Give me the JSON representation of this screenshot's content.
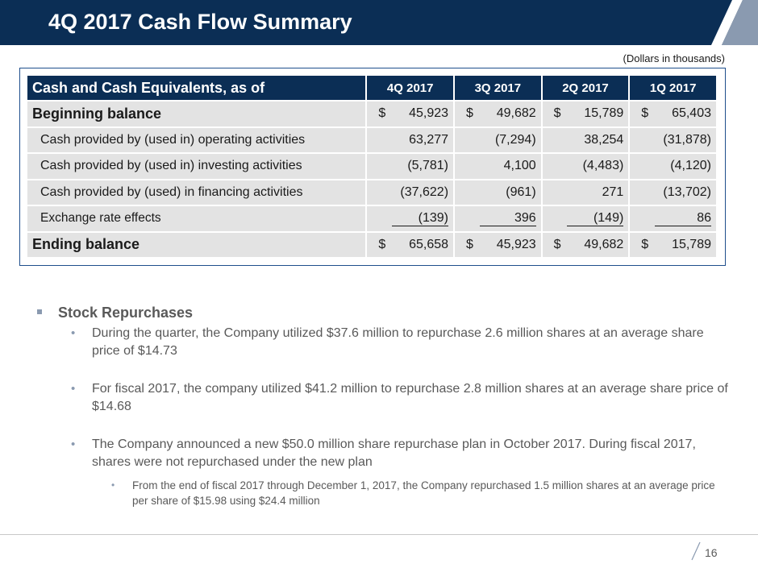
{
  "header": {
    "title": "4Q 2017 Cash Flow Summary"
  },
  "table": {
    "units_note": "(Dollars in thousands)",
    "header_label": "Cash and Cash Equivalents, as of",
    "columns": [
      "4Q 2017",
      "3Q 2017",
      "2Q 2017",
      "1Q 2017"
    ],
    "currency_symbol": "$",
    "rows": [
      {
        "label": "Beginning balance",
        "values": [
          "45,923",
          "49,682",
          "15,789",
          "65,403"
        ]
      },
      {
        "label": "Cash provided by (used in) operating activities",
        "values": [
          "63,277",
          "(7,294)",
          "38,254",
          "(31,878)"
        ]
      },
      {
        "label": "Cash provided by (used in) investing activities",
        "values": [
          "(5,781)",
          "4,100",
          "(4,483)",
          "(4,120)"
        ]
      },
      {
        "label": "Cash provided by (used) in financing activities",
        "values": [
          "(37,622)",
          "(961)",
          "271",
          "(13,702)"
        ]
      },
      {
        "label": "Exchange rate effects",
        "values": [
          "(139)",
          "396",
          "(149)",
          "86"
        ]
      },
      {
        "label": "Ending balance",
        "values": [
          "65,658",
          "45,923",
          "49,682",
          "15,789"
        ]
      }
    ]
  },
  "bullets": {
    "heading": "Stock Repurchases",
    "items": [
      "During the quarter, the Company utilized $37.6 million to repurchase 2.6 million shares at an average share price of $14.73",
      "For fiscal 2017, the company utilized $41.2 million to repurchase 2.8 million shares at an average share price of $14.68",
      "The Company announced a new $50.0 million share repurchase plan in October 2017. During fiscal 2017, shares were not repurchased under the new plan"
    ],
    "sub_item": "From the end of fiscal 2017 through December 1, 2017, the Company repurchased 1.5 million shares at an average price per share of $15.98 using $24.4 million"
  },
  "footer": {
    "page_number": "16"
  },
  "colors": {
    "navy": "#0b2e55",
    "accent": "#1f4e8c",
    "cell_gray": "#e3e3e3",
    "text_gray": "#595959"
  }
}
